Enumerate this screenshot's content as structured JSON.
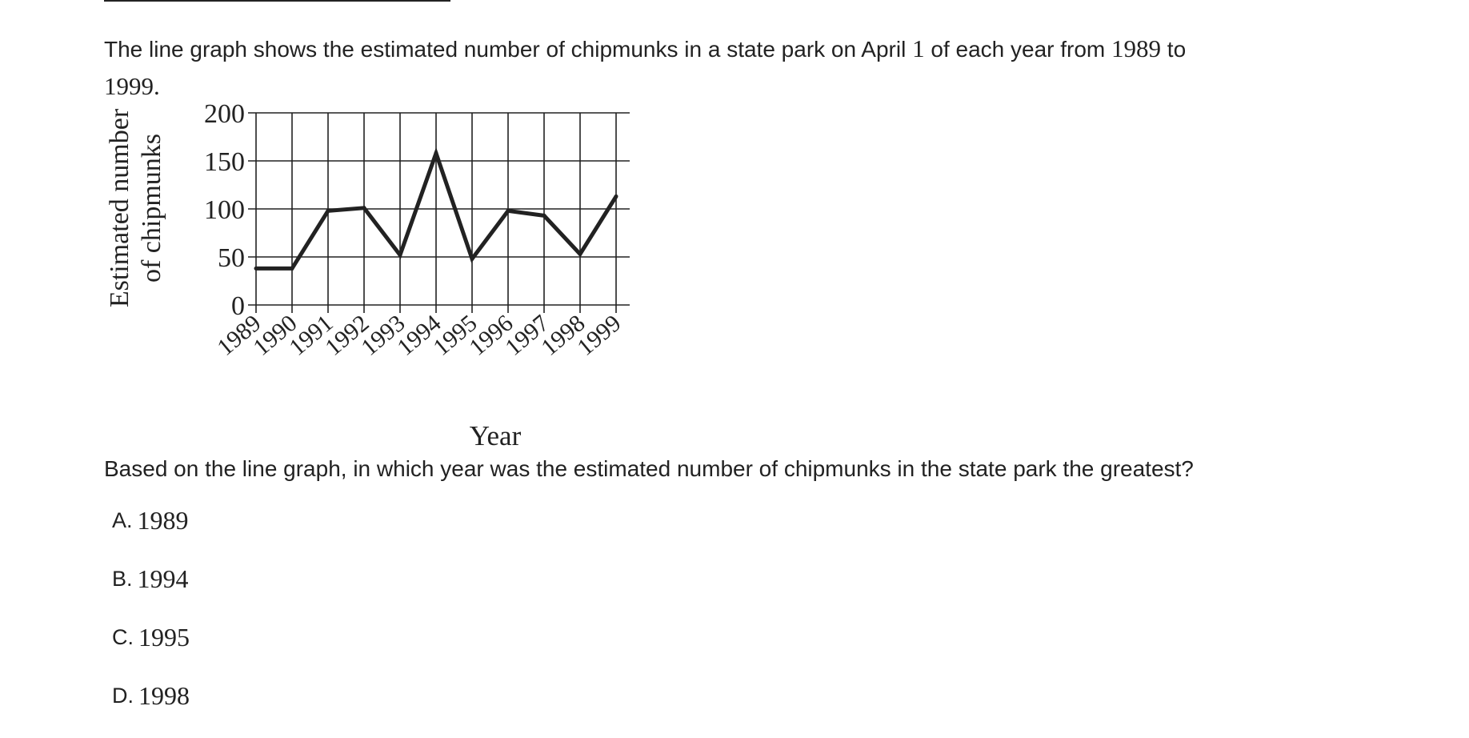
{
  "intro": {
    "text_before_date": "The line graph shows the estimated number of chipmunks in a state park on April ",
    "date_day": "1",
    "text_mid": " of each year from ",
    "start_year": "1989",
    "text_to": " to ",
    "end_year": "1999",
    "end_punct": "."
  },
  "chart_data": {
    "type": "line",
    "title": "",
    "xlabel": "Year",
    "ylabel_lines": [
      "Estimated number",
      "of chipmunks"
    ],
    "categories": [
      "1989",
      "1990",
      "1991",
      "1992",
      "1993",
      "1994",
      "1995",
      "1996",
      "1997",
      "1998",
      "1999"
    ],
    "values": [
      38,
      38,
      98,
      101,
      52,
      158,
      48,
      98,
      93,
      53,
      113
    ],
    "ylim": [
      0,
      200
    ],
    "yticks": [
      "0",
      "50",
      "100",
      "150",
      "200"
    ],
    "ytick_values": [
      0,
      50,
      100,
      150,
      200
    ],
    "grid": true,
    "line_color": "#222222"
  },
  "question": {
    "text": "Based on the line graph, in which year was the estimated number of chipmunks in the state park the greatest?"
  },
  "options": [
    {
      "letter": "A.",
      "value": "1989"
    },
    {
      "letter": "B.",
      "value": "1994"
    },
    {
      "letter": "C.",
      "value": "1995"
    },
    {
      "letter": "D.",
      "value": "1998"
    }
  ]
}
